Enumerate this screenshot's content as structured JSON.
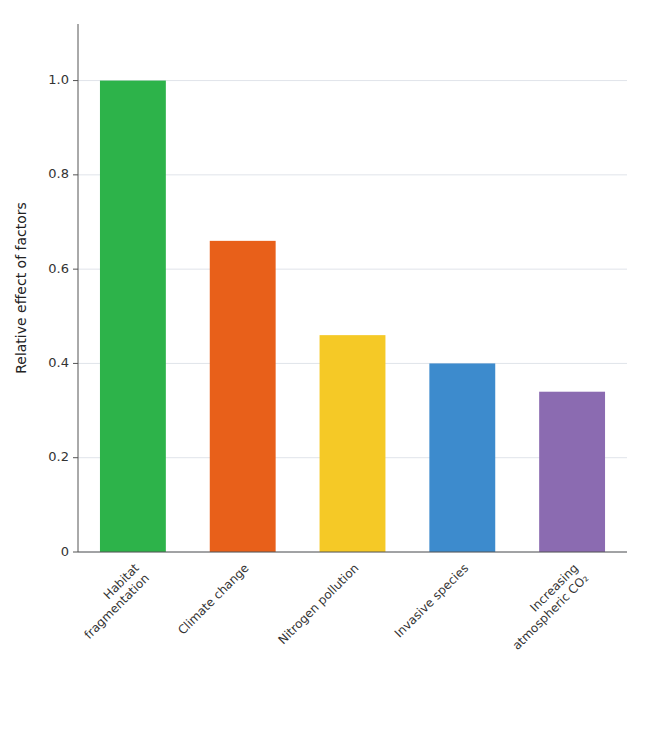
{
  "chart_data": {
    "type": "bar",
    "ylabel": "Relative effect of factors",
    "categories": [
      "Habitat\nfragmentation",
      "Climate change",
      "Nitrogen pollution",
      "Invasive species",
      "Increasing\natmospheric CO₂"
    ],
    "values": [
      1.0,
      0.66,
      0.46,
      0.4,
      0.34
    ],
    "colors": [
      "#2db34a",
      "#e8601a",
      "#f5c926",
      "#3d8bcd",
      "#8b6bb1"
    ],
    "ylim": [
      0,
      1.12
    ],
    "yticks": [
      0,
      0.2,
      0.4,
      0.6,
      0.8,
      {
        "value": 1.0,
        "label": "1.0"
      }
    ],
    "grid": true
  }
}
